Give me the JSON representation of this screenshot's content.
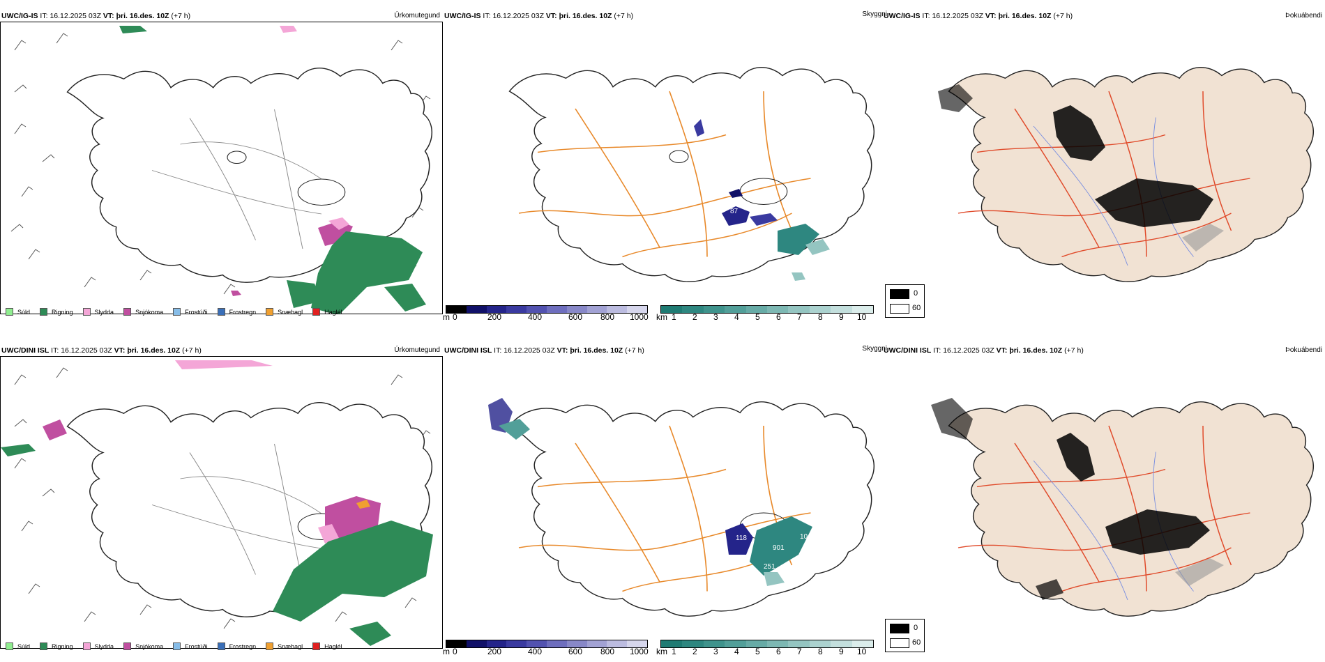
{
  "rows": [
    {
      "model": "UWC/IG-IS",
      "it_label": "IT:",
      "it_value": "16.12.2025 03Z",
      "vt_label": "VT:",
      "vt_value": "þri. 16.des. 10Z",
      "lead": "(+7 h)",
      "precip_title": "Úrkomutegund",
      "cloud_title": "Skyggni",
      "fog_title": "Þokuábendi"
    },
    {
      "model": "UWC/DINI ISL",
      "it_label": "IT:",
      "it_value": "16.12.2025 03Z",
      "vt_label": "VT:",
      "vt_value": "þri. 16.des. 10Z",
      "lead": "(+7 h)",
      "precip_title": "Úrkomutegund",
      "cloud_title": "Skyggni",
      "fog_title": "Þokuábendi"
    }
  ],
  "precip_legend": [
    {
      "label": "Súld",
      "color": "#90ee90"
    },
    {
      "label": "Rigning",
      "color": "#2e8b57"
    },
    {
      "label": "Slydda",
      "color": "#f4a6d7"
    },
    {
      "label": "Snjókoma",
      "color": "#c04fa0"
    },
    {
      "label": "Frostúði",
      "color": "#87bde8"
    },
    {
      "label": "Frostregn",
      "color": "#3a6fb8"
    },
    {
      "label": "Snæhagl",
      "color": "#f0a030"
    },
    {
      "label": "Haglél",
      "color": "#e02020"
    }
  ],
  "cloud_base_bar": {
    "unit": "m",
    "ticks": [
      "0",
      "200",
      "400",
      "600",
      "800",
      "1000"
    ],
    "colors": [
      "#000000",
      "#101068",
      "#24248a",
      "#3a3aa0",
      "#5252b0",
      "#6e6ebe",
      "#8888c8",
      "#a2a2d4",
      "#bcbce0",
      "#d6d6ec"
    ]
  },
  "visibility_bar": {
    "unit": "km",
    "ticks": [
      "1",
      "2",
      "3",
      "4",
      "5",
      "6",
      "7",
      "8",
      "9",
      "10"
    ],
    "colors": [
      "#1f7b73",
      "#2e8780",
      "#3f938c",
      "#529f99",
      "#67aba6",
      "#7db8b3",
      "#94c5c1",
      "#abd2cf",
      "#c3dfdd",
      "#dbedeb"
    ]
  },
  "fog_key": [
    {
      "label": "0",
      "color": "#000000"
    },
    {
      "label": "60",
      "color": "#ffffff"
    }
  ],
  "map_labels": {
    "row1": [
      "87"
    ],
    "row2": [
      "118",
      "10",
      "901",
      "251"
    ]
  },
  "colors": {
    "coast": "#222222",
    "roads_orange": "#e8892a",
    "roads_red": "#e04a2a",
    "land_beige": "#f1e2d3",
    "rivers": "#7a8fe0",
    "wind_barb": "#555555"
  }
}
